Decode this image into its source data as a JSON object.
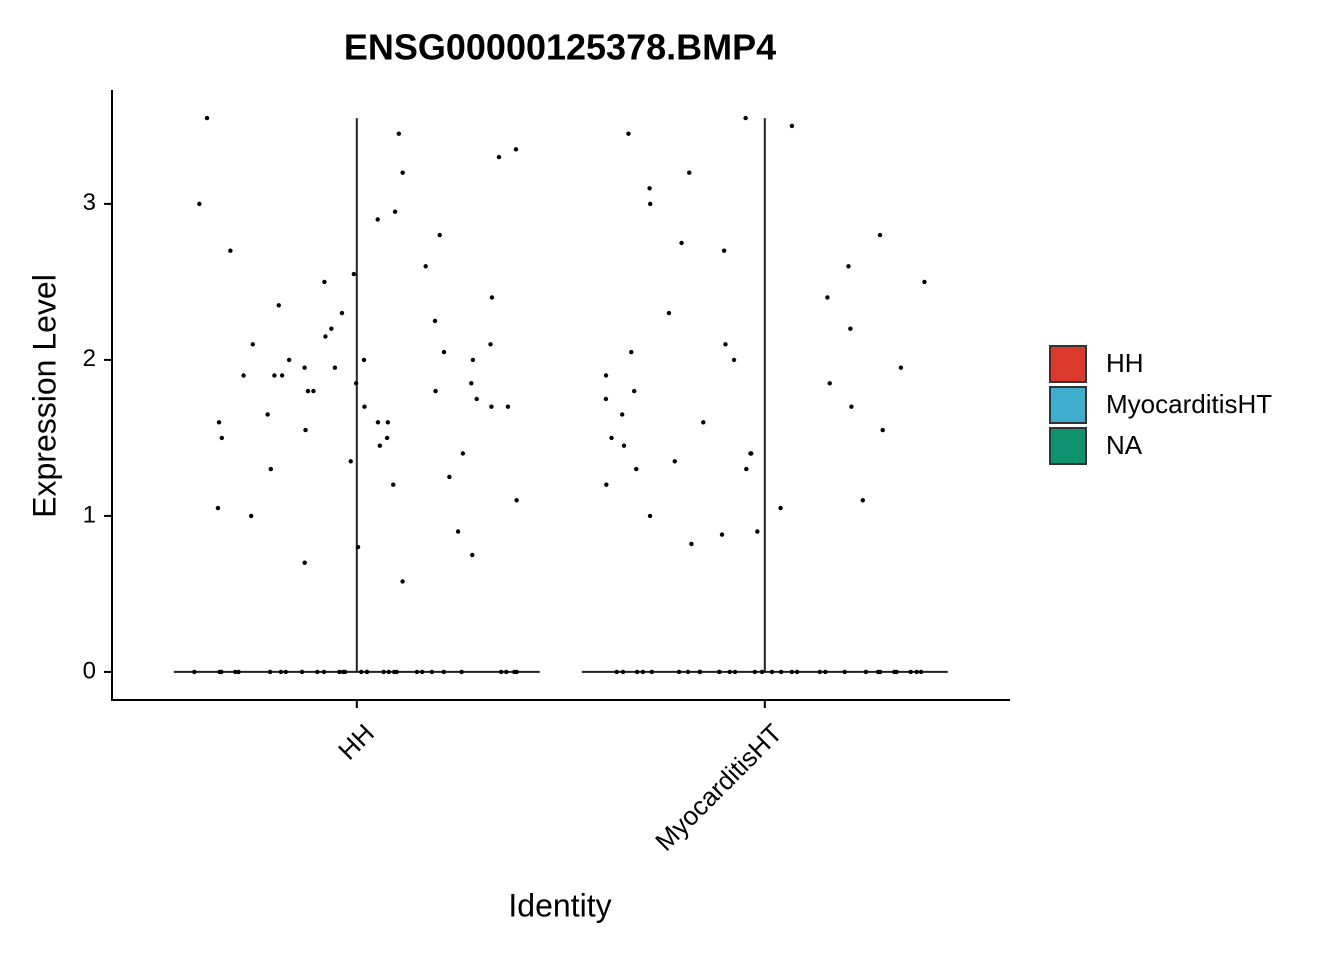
{
  "chart_data": {
    "type": "violin",
    "title": "ENSG00000125378.BMP4",
    "xlabel": "Identity",
    "ylabel": "Expression Level",
    "categories": [
      "HH",
      "MyocarditisHT"
    ],
    "series": [
      {
        "name": "HH",
        "color": "#DC3A2D",
        "values": [
          2.1,
          1.8,
          1.6,
          2.3,
          1.9,
          1.4,
          2.8,
          0.8,
          1.7,
          2.0,
          3.0,
          1.5,
          1.2,
          2.5,
          1.85,
          1.95,
          2.2,
          1.3,
          1.1,
          2.6,
          1.75,
          0.75,
          3.55,
          3.45,
          3.3,
          1.65,
          2.05,
          1.9,
          2.4,
          1.0,
          1.55,
          2.9,
          1.8,
          2.15,
          1.45,
          2.7,
          0.58,
          1.7,
          1.9,
          2.35,
          1.25,
          2.0,
          3.2,
          1.6,
          1.85,
          0.9,
          2.25,
          1.5,
          1.95,
          3.35,
          2.1,
          1.35,
          1.8,
          2.55,
          1.05,
          1.7,
          2.0,
          0.7,
          2.95,
          1.6,
          0,
          0,
          0,
          0,
          0,
          0,
          0,
          0,
          0,
          0,
          0,
          0,
          0,
          0,
          0,
          0,
          0,
          0,
          0,
          0,
          0,
          0,
          0,
          0,
          0,
          0,
          0,
          0,
          0,
          0
        ]
      },
      {
        "name": "MyocarditisHT",
        "color": "#3FADCE",
        "values": [
          3.2,
          2.5,
          1.8,
          1.3,
          1.1,
          2.0,
          1.6,
          3.1,
          2.7,
          1.4,
          1.9,
          2.3,
          1.05,
          2.8,
          1.7,
          1.5,
          3.45,
          2.6,
          0.9,
          1.35,
          2.05,
          1.65,
          1.2,
          3.5,
          3.0,
          2.2,
          1.85,
          0.82,
          1.45,
          2.4,
          3.55,
          1.75,
          1.0,
          2.1,
          1.55,
          0.88,
          2.75,
          1.3,
          1.95,
          1.4,
          0,
          0,
          0,
          0,
          0,
          0,
          0,
          0,
          0,
          0,
          0,
          0,
          0,
          0,
          0,
          0,
          0,
          0,
          0,
          0,
          0,
          0,
          0,
          0,
          0,
          0,
          0,
          0,
          0,
          0
        ]
      },
      {
        "name": "NA",
        "color": "#0E9270",
        "values": []
      }
    ],
    "point_color": "#000000",
    "ylim": [
      -0.18,
      3.73
    ],
    "yticks": [
      0,
      1,
      2,
      3
    ],
    "grid": false
  }
}
